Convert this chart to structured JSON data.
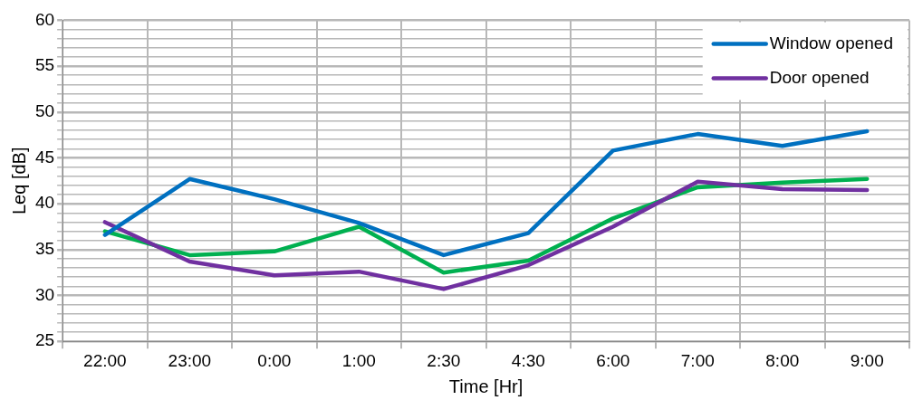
{
  "chart_data": {
    "type": "line",
    "xlabel": "Time [Hr]",
    "ylabel": "Leq [dB]",
    "categories": [
      "22:00",
      "23:00",
      "0:00",
      "1:00",
      "2:30",
      "4:30",
      "6:00",
      "7:00",
      "8:00",
      "9:00"
    ],
    "series": [
      {
        "name": "Window opened",
        "color": "#0070c0",
        "values": [
          36.6,
          42.7,
          40.5,
          37.9,
          34.4,
          36.8,
          45.8,
          47.6,
          46.3,
          47.9
        ]
      },
      {
        "name": "Door opened",
        "color": "#7030a0",
        "values": [
          38.0,
          33.7,
          32.2,
          32.6,
          30.7,
          33.3,
          37.5,
          42.4,
          41.6,
          41.5
        ]
      },
      {
        "color": "#00b050",
        "values": [
          37.0,
          34.4,
          34.8,
          37.5,
          32.5,
          33.8,
          38.4,
          41.8,
          42.3,
          42.7
        ]
      }
    ],
    "ylim": [
      25,
      60
    ],
    "yticks": [
      25,
      {
        "value": 26,
        "label": null
      },
      {
        "value": 27,
        "label": null
      },
      {
        "value": 28,
        "label": null
      },
      {
        "value": 29,
        "label": null
      },
      30,
      {
        "value": 31,
        "label": null
      },
      {
        "value": 32,
        "label": null
      },
      {
        "value": 33,
        "label": null
      },
      {
        "value": 34,
        "label": null
      },
      35,
      {
        "value": 36,
        "label": null
      },
      {
        "value": 37,
        "label": null
      },
      {
        "value": 38,
        "label": null
      },
      {
        "value": 39,
        "label": null
      },
      40,
      {
        "value": 41,
        "label": null
      },
      {
        "value": 42,
        "label": null
      },
      {
        "value": 43,
        "label": null
      },
      {
        "value": 44,
        "label": null
      },
      45,
      {
        "value": 46,
        "label": null
      },
      {
        "value": 47,
        "label": null
      },
      {
        "value": 48,
        "label": null
      },
      {
        "value": 49,
        "label": null
      },
      50,
      {
        "value": 51,
        "label": null
      },
      {
        "value": 52,
        "label": null
      },
      {
        "value": 53,
        "label": null
      },
      {
        "value": 54,
        "label": null
      },
      55,
      {
        "value": 56,
        "label": null
      },
      {
        "value": 57,
        "label": null
      },
      {
        "value": 58,
        "label": null
      },
      {
        "value": 59,
        "label": null
      },
      60
    ],
    "grid": true,
    "legend": "top right",
    "marker": "none",
    "line_style": "solid"
  }
}
